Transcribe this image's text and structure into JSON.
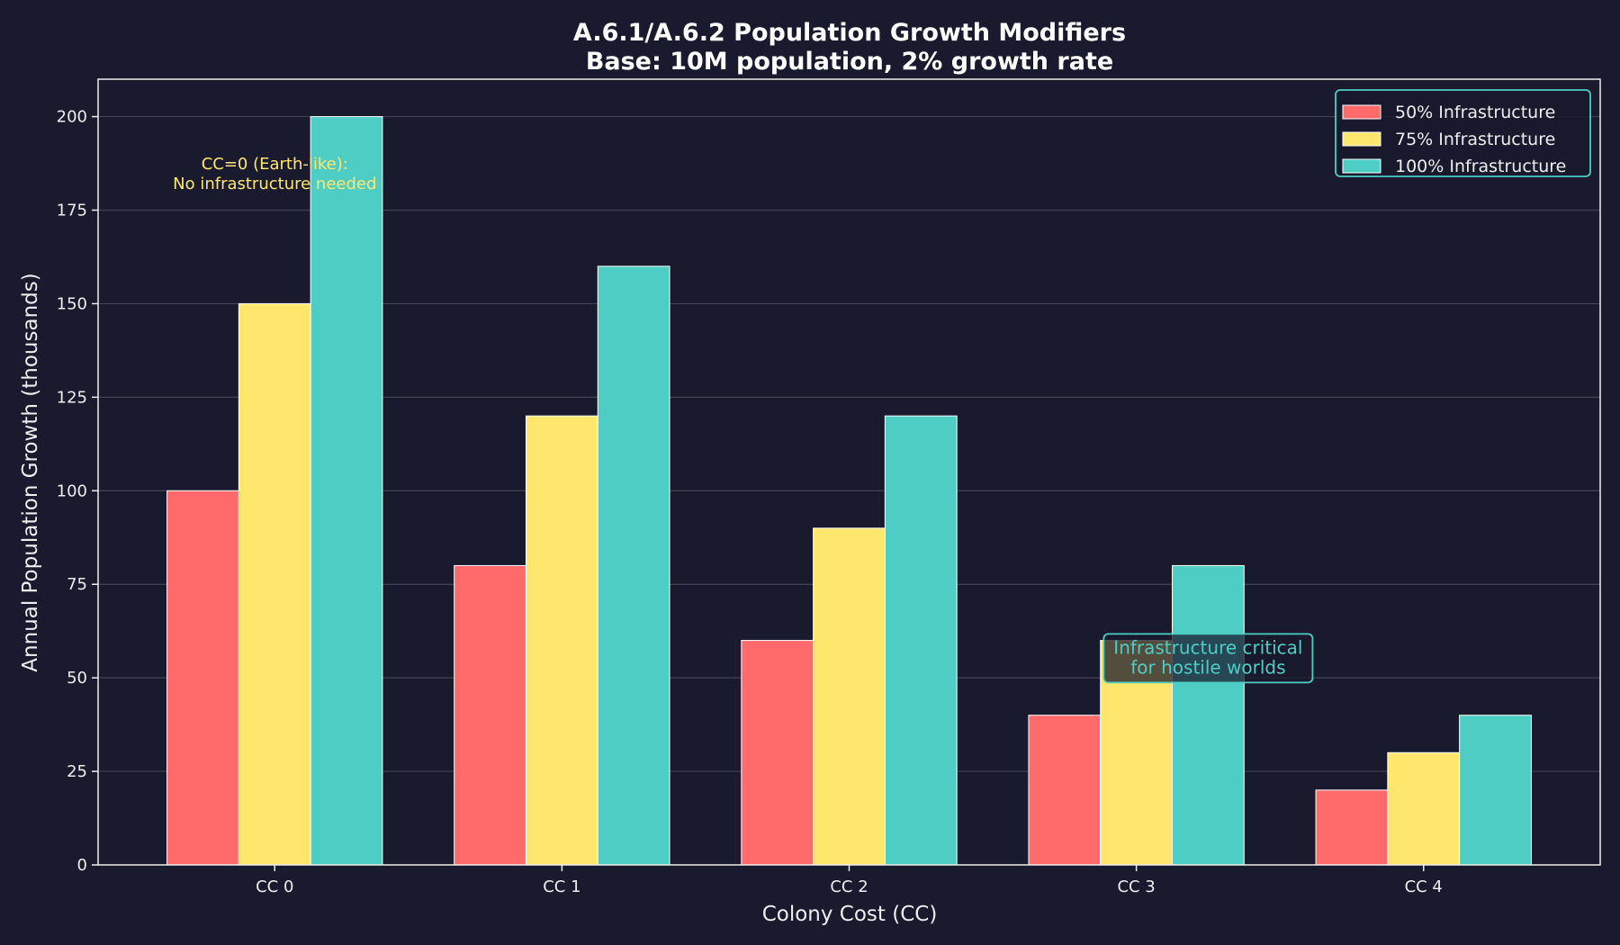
{
  "chart_data": {
    "type": "bar",
    "title": "A.6.1/A.6.2 Population Growth Modifiers",
    "subtitle": "Base: 10M population, 2% growth rate",
    "xlabel": "Colony Cost (CC)",
    "ylabel": "Annual Population Growth (thousands)",
    "categories": [
      "CC 0",
      "CC 1",
      "CC 2",
      "CC 3",
      "CC 4"
    ],
    "ylim": [
      0,
      210
    ],
    "yticks": [
      0,
      25,
      50,
      75,
      100,
      125,
      150,
      175,
      200
    ],
    "grid": "y",
    "legend_placement": "top-right",
    "series": [
      {
        "name": "50% Infrastructure",
        "color": "#ff6b6b",
        "values": [
          100,
          80,
          60,
          40,
          20
        ]
      },
      {
        "name": "75% Infrastructure",
        "color": "#ffe66d",
        "values": [
          150,
          120,
          90,
          60,
          30
        ]
      },
      {
        "name": "100% Infrastructure",
        "color": "#4ecdc4",
        "values": [
          200,
          160,
          120,
          80,
          40
        ]
      }
    ],
    "annotations": [
      {
        "text": [
          "CC=0 (Earth-like):",
          "No infrastructure needed"
        ],
        "x": 0,
        "y": 184,
        "color": "#ffe66d",
        "boxed": false
      },
      {
        "text": [
          "Infrastructure critical",
          "for hostile worlds"
        ],
        "x": 3.25,
        "y": 55,
        "color": "#4ecdc4",
        "boxed": true
      }
    ],
    "colors": {
      "background": "#1a1a2e",
      "axis": "#eeeeee",
      "legend_border": "#4ecdc4"
    }
  }
}
